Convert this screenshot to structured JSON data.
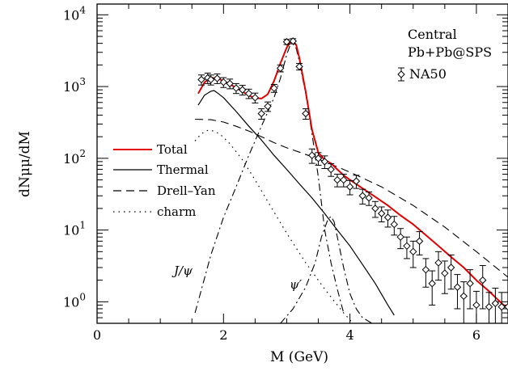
{
  "chart_data": {
    "type": "line",
    "xlabel": "M (GeV)",
    "ylabel": "dNμμ/dM",
    "xlim": [
      0,
      6.5
    ],
    "ylim_log10": [
      -0.3,
      4.15
    ],
    "yscale": "log",
    "grid": false,
    "x_ticks": [
      {
        "value": 0,
        "label": "0"
      },
      {
        "value": 2,
        "label": "2"
      },
      {
        "value": 4,
        "label": "4"
      },
      {
        "value": 6,
        "label": "6"
      }
    ],
    "y_ticks": [
      {
        "value": 1,
        "base": "10",
        "exp": "0"
      },
      {
        "value": 10,
        "base": "10",
        "exp": "1"
      },
      {
        "value": 100,
        "base": "10",
        "exp": "2"
      },
      {
        "value": 1000,
        "base": "10",
        "exp": "3"
      },
      {
        "value": 10000,
        "base": "10",
        "exp": "4"
      }
    ],
    "annotations": {
      "line1": "Central",
      "line2": "Pb+Pb@SPS",
      "data_label": "NA50",
      "jpsi_label": "J/ψ",
      "psiprime_label": "ψ′"
    },
    "legend_position": "center-left",
    "series": [
      {
        "name": "Total",
        "style": "solid",
        "color": "#e00000",
        "x": [
          1.6,
          1.7,
          1.8,
          1.9,
          2.0,
          2.1,
          2.2,
          2.3,
          2.4,
          2.5,
          2.6,
          2.7,
          2.8,
          2.9,
          3.0,
          3.05,
          3.1,
          3.15,
          3.2,
          3.3,
          3.4,
          3.5,
          3.6,
          3.7,
          3.8,
          3.9,
          4.0,
          4.2,
          4.4,
          4.6,
          4.8,
          5.0,
          5.2,
          5.4,
          5.6,
          5.8,
          6.0,
          6.2,
          6.4,
          6.5
        ],
        "y": [
          800,
          1150,
          1330,
          1300,
          1200,
          1080,
          960,
          850,
          750,
          690,
          680,
          780,
          1200,
          2100,
          3500,
          4100,
          4200,
          3800,
          2500,
          850,
          250,
          120,
          95,
          85,
          70,
          58,
          50,
          38,
          29,
          22,
          16,
          12,
          8.5,
          6,
          4.2,
          3,
          2,
          1.4,
          0.95,
          0.8
        ]
      },
      {
        "name": "Thermal",
        "style": "solid",
        "color": "#000000",
        "x": [
          1.6,
          1.7,
          1.8,
          1.85,
          1.9,
          2.0,
          2.2,
          2.4,
          2.6,
          2.8,
          3.0,
          3.2,
          3.4,
          3.6,
          3.8,
          4.0,
          4.2,
          4.4,
          4.6,
          4.7
        ],
        "y": [
          550,
          760,
          860,
          880,
          820,
          700,
          450,
          280,
          180,
          110,
          70,
          44,
          28,
          17,
          10,
          6,
          3.3,
          1.8,
          0.9,
          0.65
        ]
      },
      {
        "name": "Drell–Yan",
        "style": "dashed",
        "color": "#000000",
        "x": [
          1.55,
          1.8,
          2.0,
          2.2,
          2.4,
          2.6,
          2.8,
          3.0,
          3.2,
          3.4,
          3.6,
          3.8,
          4.0,
          4.5,
          5.0,
          5.5,
          6.0,
          6.5
        ],
        "y": [
          350,
          345,
          320,
          280,
          240,
          200,
          165,
          140,
          122,
          105,
          90,
          76,
          64,
          40,
          22,
          11,
          5,
          2.2
        ]
      },
      {
        "name": "charm",
        "style": "dotted",
        "color": "#000000",
        "x": [
          1.55,
          1.65,
          1.75,
          1.85,
          1.95,
          2.1,
          2.3,
          2.5,
          2.7,
          3.0,
          3.3,
          3.6,
          3.9,
          4.05
        ],
        "y": [
          175,
          220,
          245,
          240,
          215,
          160,
          95,
          50,
          25,
          9,
          3.5,
          1.5,
          0.7,
          0.5
        ]
      }
    ],
    "component_curves": [
      {
        "name": "J/ψ",
        "style": "dashdot",
        "x": [
          1.55,
          1.8,
          2.0,
          2.2,
          2.4,
          2.6,
          2.8,
          2.9,
          3.0,
          3.05,
          3.1,
          3.15,
          3.2,
          3.3,
          3.4,
          3.5,
          3.6,
          3.7,
          3.8,
          3.9
        ],
        "y": [
          0.7,
          4.5,
          15,
          40,
          110,
          280,
          700,
          1300,
          2800,
          3700,
          3900,
          3400,
          2200,
          800,
          220,
          55,
          10,
          3.5,
          1.5,
          0.7
        ]
      },
      {
        "name": "ψ′",
        "style": "dashdot",
        "x": [
          2.9,
          3.1,
          3.3,
          3.45,
          3.55,
          3.65,
          3.7,
          3.75,
          3.8,
          3.9,
          4.0,
          4.1,
          4.2,
          4.35
        ],
        "y": [
          0.5,
          0.8,
          1.6,
          3.5,
          8,
          14,
          15.5,
          13,
          8,
          3,
          1.3,
          0.8,
          0.6,
          0.5
        ]
      }
    ],
    "data_points": {
      "name": "NA50",
      "marker": "diamond",
      "x": [
        1.65,
        1.75,
        1.8,
        1.9,
        2.0,
        2.1,
        2.2,
        2.3,
        2.4,
        2.5,
        2.6,
        2.7,
        2.8,
        2.9,
        3.0,
        3.1,
        3.2,
        3.3,
        3.4,
        3.5,
        3.6,
        3.7,
        3.8,
        3.9,
        4.0,
        4.1,
        4.2,
        4.3,
        4.4,
        4.5,
        4.6,
        4.7,
        4.8,
        4.9,
        5.0,
        5.1,
        5.2,
        5.3,
        5.4,
        5.5,
        5.6,
        5.7,
        5.8,
        5.9,
        6.0,
        6.1,
        6.2,
        6.3,
        6.4,
        6.5
      ],
      "y": [
        1250,
        1320,
        1250,
        1300,
        1150,
        1100,
        950,
        900,
        800,
        700,
        420,
        530,
        950,
        1800,
        4200,
        4300,
        1900,
        420,
        110,
        100,
        90,
        70,
        50,
        50,
        40,
        48,
        30,
        28,
        20,
        17,
        15,
        12,
        8,
        6,
        5,
        7,
        2.8,
        1.8,
        3.5,
        2.5,
        3.0,
        1.6,
        1.2,
        1.8,
        0.9,
        2.0,
        0.85,
        0.95,
        0.85,
        0.85
      ],
      "err": [
        200,
        220,
        200,
        200,
        180,
        170,
        150,
        140,
        120,
        110,
        70,
        80,
        120,
        200,
        350,
        350,
        200,
        70,
        25,
        20,
        18,
        14,
        10,
        10,
        9,
        10,
        7,
        6,
        5,
        4,
        4,
        3.5,
        2.5,
        2,
        2,
        2.5,
        1.2,
        0.9,
        1.5,
        1.2,
        1.5,
        0.8,
        0.7,
        1.0,
        0.5,
        1.2,
        0.5,
        0.6,
        0.5,
        0.5
      ]
    }
  }
}
